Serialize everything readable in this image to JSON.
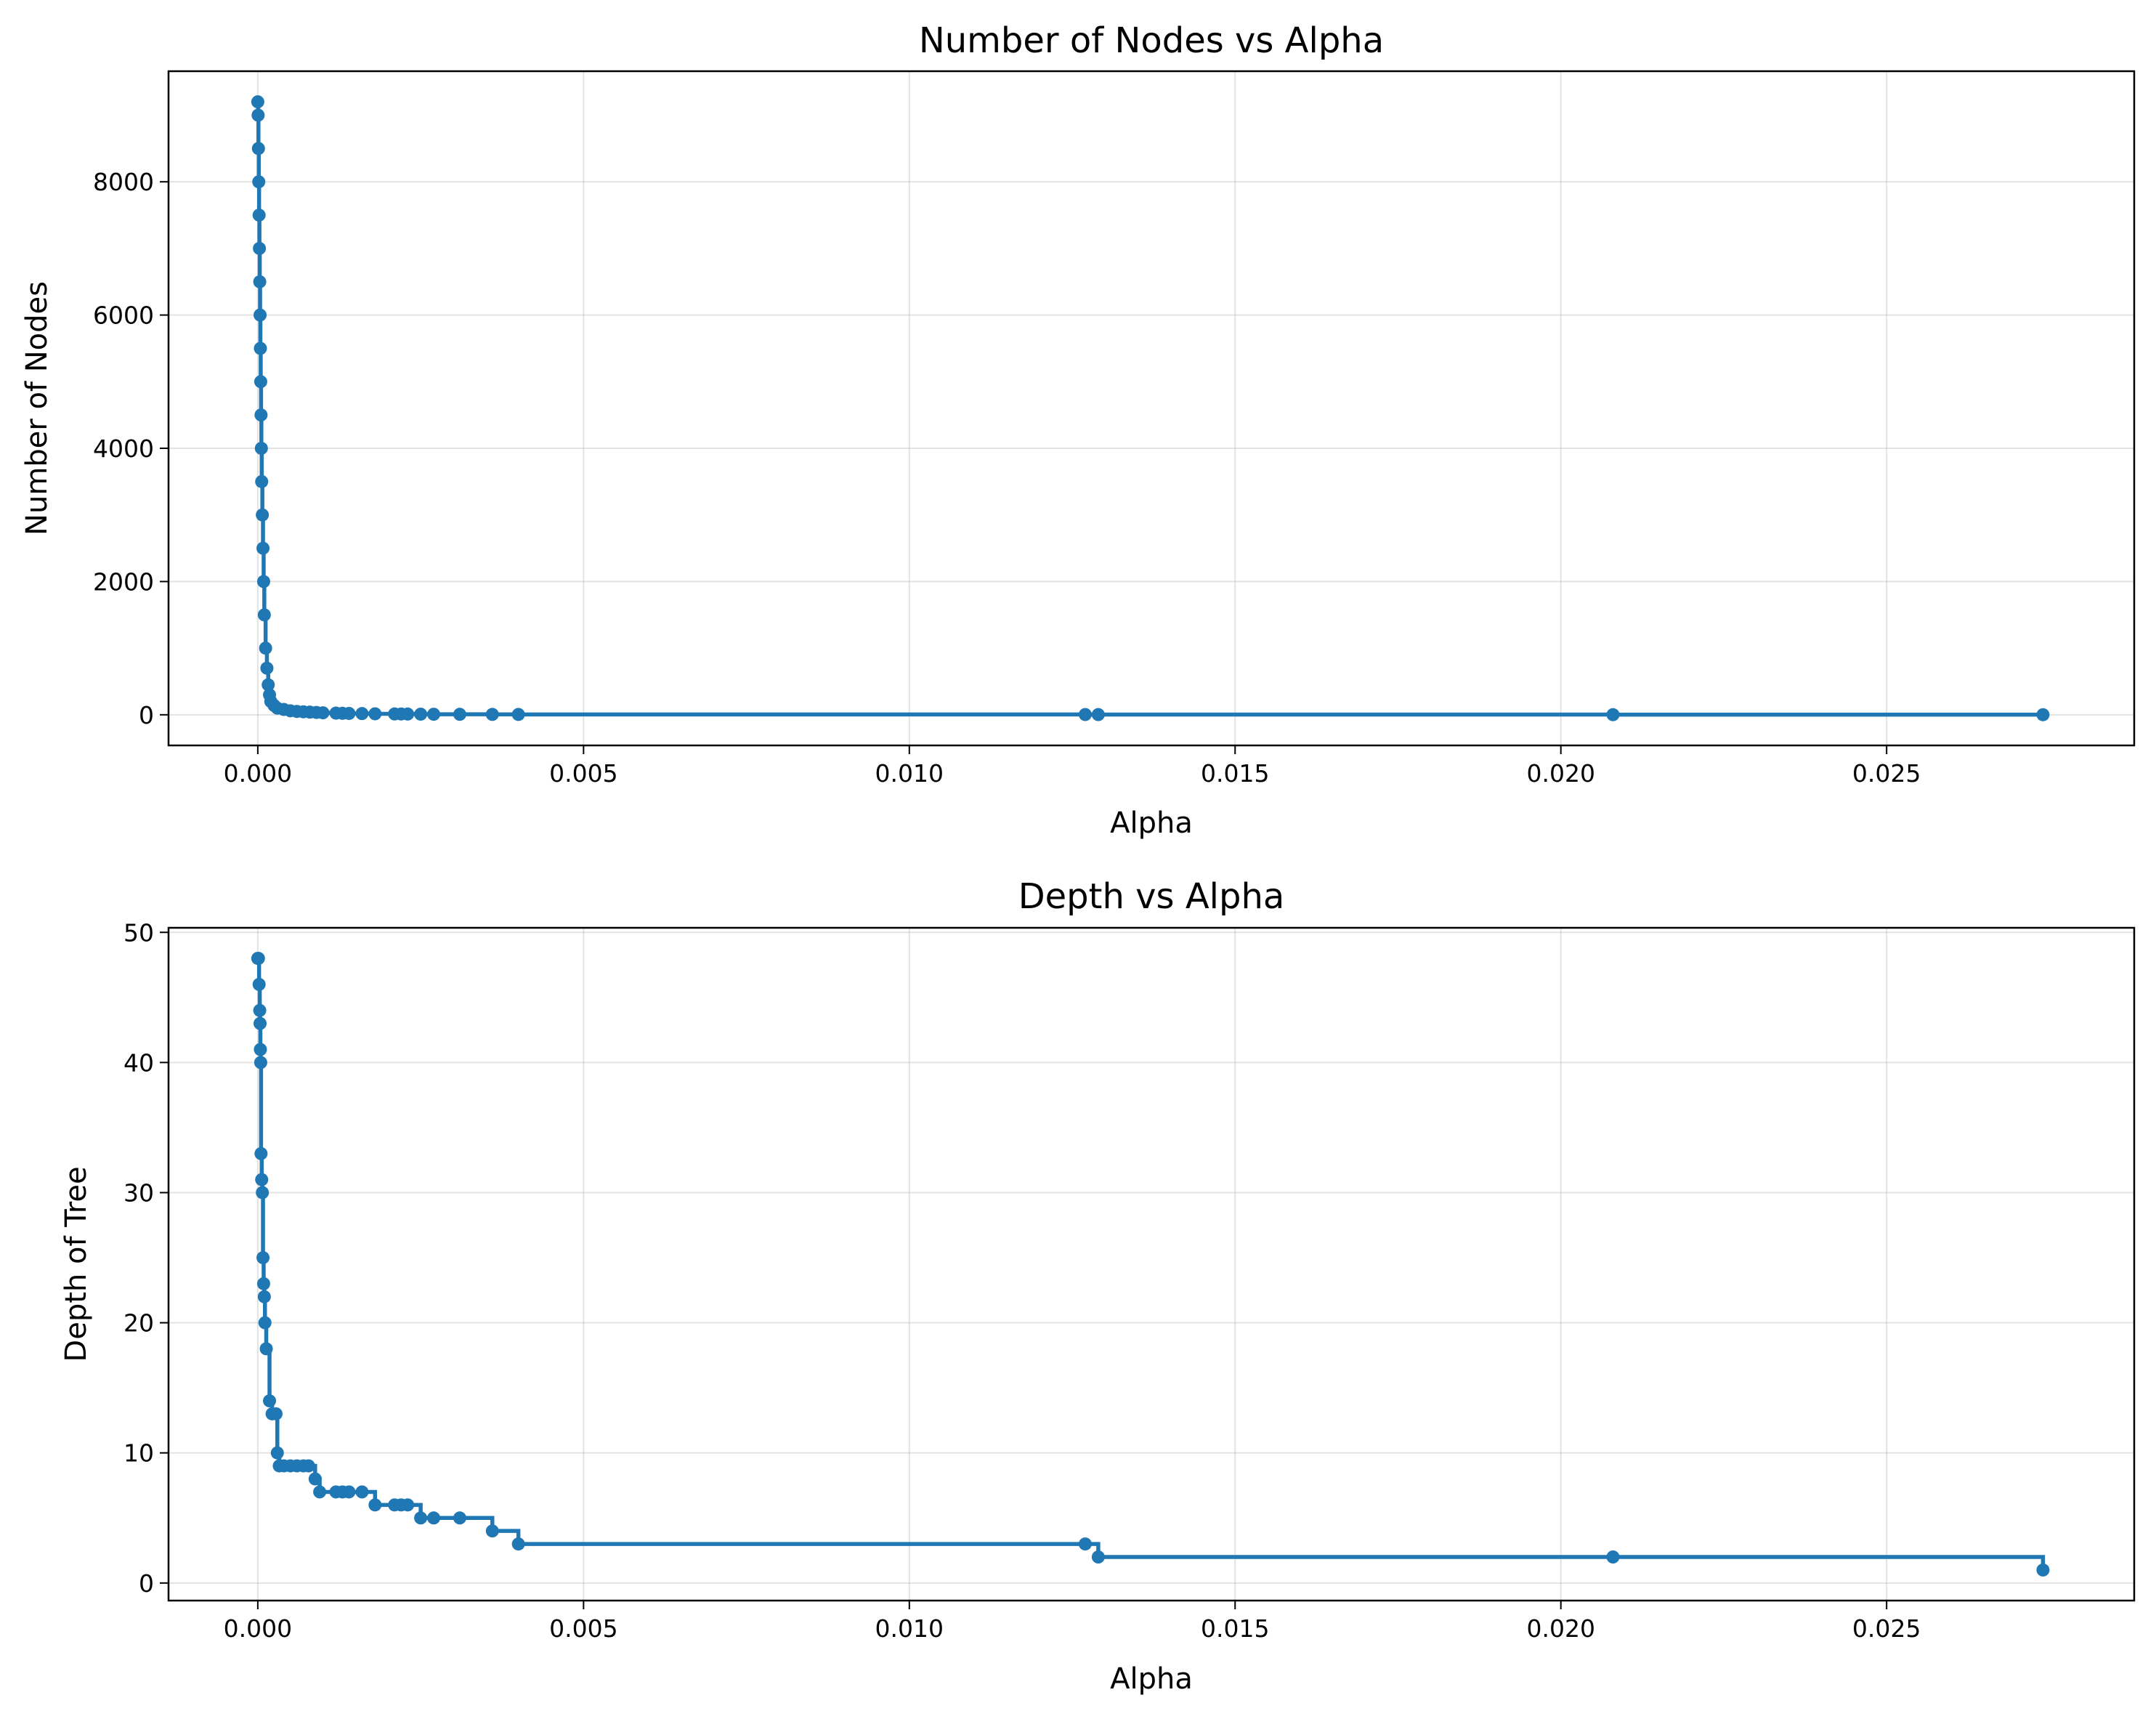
{
  "chart_data": [
    {
      "type": "line",
      "drawstyle": "steps-post",
      "marker": "circle",
      "title": "Number of Nodes vs Alpha",
      "xlabel": "Alpha",
      "ylabel": "Number of Nodes",
      "xlim": [
        -0.00137,
        0.0288
      ],
      "ylim": [
        -460,
        9660
      ],
      "xticks": [
        0.0,
        0.005,
        0.01,
        0.015,
        0.02,
        0.025
      ],
      "xtick_labels": [
        "0.000",
        "0.005",
        "0.010",
        "0.015",
        "0.020",
        "0.025"
      ],
      "yticks": [
        0,
        2000,
        4000,
        6000,
        8000
      ],
      "ytick_labels": [
        "0",
        "2000",
        "4000",
        "6000",
        "8000"
      ],
      "grid": true,
      "color": "#1f77b4",
      "series": [
        {
          "x": [
            0.0,
            5e-06,
            1e-05,
            1.5e-05,
            2e-05,
            2.5e-05,
            3e-05,
            3.5e-05,
            4e-05,
            4.5e-05,
            5e-05,
            5.5e-05,
            6e-05,
            7e-05,
            8e-05,
            9e-05,
            0.0001,
            0.00012,
            0.00014,
            0.00016,
            0.00018,
            0.0002,
            0.00025,
            0.0003,
            0.0004,
            0.0005,
            0.0006,
            0.0007,
            0.0008,
            0.0009,
            0.001,
            0.0012,
            0.0013,
            0.0014,
            0.0016,
            0.0018,
            0.0021,
            0.0022,
            0.0023,
            0.0025,
            0.0027,
            0.0031,
            0.0036,
            0.004,
            0.0127,
            0.0129,
            0.0208,
            0.0274
          ],
          "y": [
            9200,
            9000,
            8500,
            8000,
            7500,
            7000,
            6500,
            6000,
            5500,
            5000,
            4500,
            4000,
            3500,
            3000,
            2500,
            2000,
            1500,
            1000,
            700,
            450,
            300,
            200,
            140,
            100,
            80,
            60,
            50,
            45,
            40,
            35,
            30,
            25,
            22,
            20,
            18,
            15,
            13,
            12,
            11,
            9,
            8,
            7,
            6,
            5,
            4,
            3,
            2,
            1
          ]
        }
      ]
    },
    {
      "type": "line",
      "drawstyle": "steps-post",
      "marker": "circle",
      "title": "Depth vs Alpha",
      "xlabel": "Alpha",
      "ylabel": "Depth of Tree",
      "xlim": [
        -0.00137,
        0.0288
      ],
      "ylim": [
        -1.35,
        50.35
      ],
      "xticks": [
        0.0,
        0.005,
        0.01,
        0.015,
        0.02,
        0.025
      ],
      "xtick_labels": [
        "0.000",
        "0.005",
        "0.010",
        "0.015",
        "0.020",
        "0.025"
      ],
      "yticks": [
        0,
        10,
        20,
        30,
        40,
        50
      ],
      "ytick_labels": [
        "0",
        "10",
        "20",
        "30",
        "40",
        "50"
      ],
      "grid": true,
      "color": "#1f77b4",
      "series": [
        {
          "x": [
            0.0,
            1e-05,
            2e-05,
            3e-05,
            3.5e-05,
            4e-05,
            4.5e-05,
            5e-05,
            6e-05,
            7e-05,
            8e-05,
            9e-05,
            0.0001,
            0.00011,
            0.00013,
            0.00018,
            0.00022,
            0.00028,
            0.0003,
            0.00033,
            0.0004,
            0.0005,
            0.0006,
            0.0007,
            0.00078,
            0.00088,
            0.00095,
            0.0012,
            0.0013,
            0.0014,
            0.0016,
            0.0018,
            0.0021,
            0.0022,
            0.0023,
            0.0025,
            0.0027,
            0.0031,
            0.0036,
            0.004,
            0.0127,
            0.0129,
            0.0208,
            0.0274
          ],
          "y": [
            48,
            48,
            46,
            44,
            43,
            41,
            40,
            33,
            31,
            30,
            25,
            23,
            22,
            20,
            18,
            14,
            13,
            13,
            10,
            9,
            9,
            9,
            9,
            9,
            9,
            8,
            7,
            7,
            7,
            7,
            7,
            6,
            6,
            6,
            6,
            5,
            5,
            5,
            4,
            3,
            3,
            2,
            2,
            1
          ]
        }
      ]
    }
  ]
}
